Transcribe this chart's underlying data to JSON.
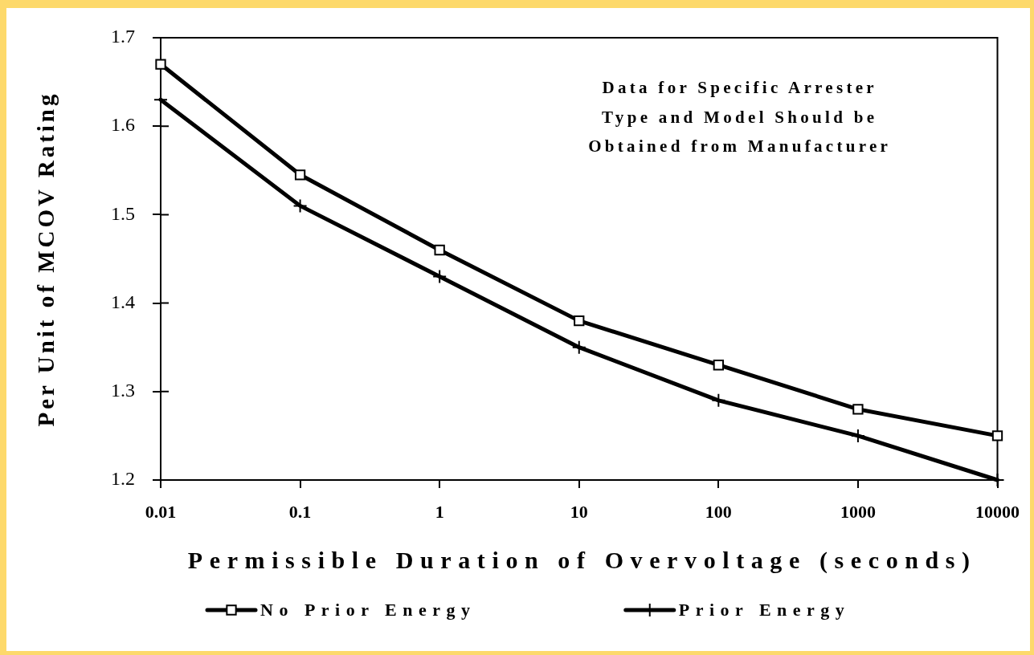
{
  "chart_data": {
    "type": "line",
    "xlabel": "Permissible Duration of Overvoltage (seconds)",
    "ylabel": "Per Unit of MCOV Rating",
    "annotations": [
      "Data for Specific Arrester\nType and Model Should be\nObtained from Manufacturer"
    ],
    "x": [
      0.01,
      0.1,
      1,
      10,
      100,
      1000,
      10000
    ],
    "log": "x",
    "xlim": [
      0.01,
      10000
    ],
    "xticks": [
      0.01,
      0.1,
      1,
      10,
      100,
      1000,
      10000
    ],
    "ylim": [
      1.2,
      1.7
    ],
    "yticks": [
      1.2,
      1.3,
      1.4,
      1.5,
      1.6,
      1.7
    ],
    "grid": false,
    "legend": "bottom",
    "series": [
      {
        "name": "No Prior Energy",
        "color": "#000000",
        "marker": "square",
        "values": [
          1.67,
          1.545,
          1.46,
          1.38,
          1.33,
          1.28,
          1.25
        ]
      },
      {
        "name": "Prior Energy",
        "color": "#000000",
        "marker": "cross",
        "values": [
          1.63,
          1.51,
          1.43,
          1.35,
          1.29,
          1.25,
          1.2
        ]
      }
    ]
  }
}
